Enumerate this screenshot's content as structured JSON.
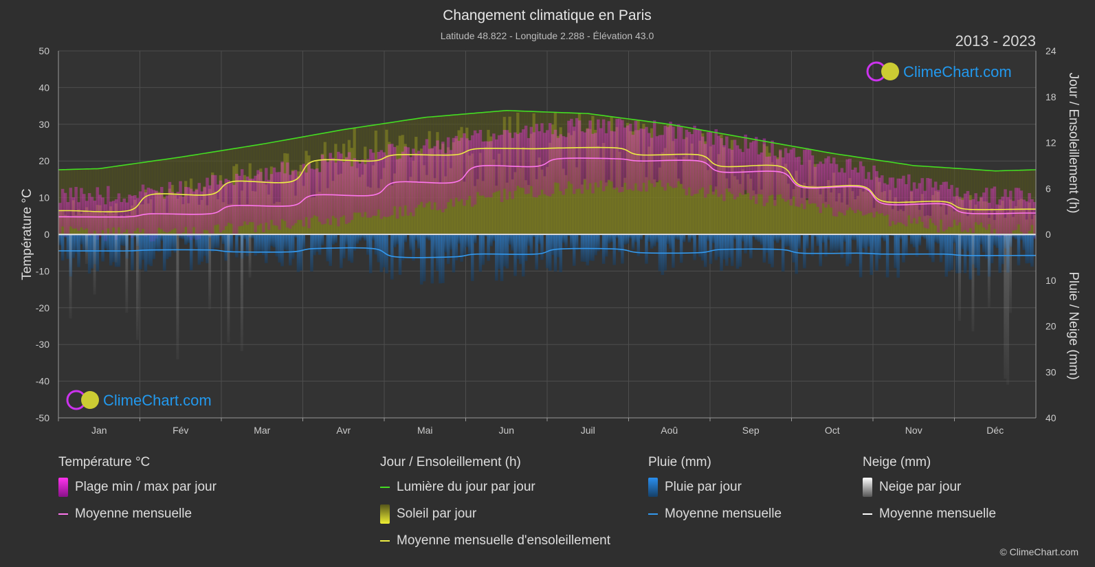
{
  "header": {
    "title": "Changement climatique en Paris",
    "subtitle": "Latitude 48.822 - Longitude 2.288 - Élévation 43.0",
    "years": "2013 - 2023"
  },
  "watermark": "ClimeChart.com",
  "copyright": "© ClimeChart.com",
  "colors": {
    "background": "#2f2f2f",
    "daylight": "#44dd22",
    "sunshine_avg": "#eeee44",
    "temp_avg": "#ff77ee",
    "rain_avg": "#3399ee",
    "snow_avg": "#ffffff",
    "temp_range": "#dd22cc",
    "sun_bar": "#9a9a1a",
    "rain_bar": "#1e5f9a",
    "brand": "#2299ee"
  },
  "chart_data": {
    "type": "line",
    "categories": [
      "Jan",
      "Fév",
      "Mar",
      "Avr",
      "Mai",
      "Jun",
      "Juil",
      "Aoû",
      "Sep",
      "Oct",
      "Nov",
      "Déc"
    ],
    "y_left": {
      "label": "Température °C",
      "min": -50,
      "max": 50,
      "ticks": [
        "50",
        "40",
        "30",
        "20",
        "10",
        "0",
        "-10",
        "-20",
        "-30",
        "-40",
        "-50"
      ]
    },
    "y_right_top": {
      "label": "Jour / Ensoleillement (h)",
      "min": 0,
      "max": 24,
      "ticks": [
        "24",
        "18",
        "12",
        "6",
        "0"
      ]
    },
    "y_right_bottom": {
      "label": "Pluie / Neige (mm)",
      "min": 0,
      "max": 40,
      "ticks": [
        "0",
        "10",
        "20",
        "30",
        "40"
      ]
    },
    "grid": true,
    "series": [
      {
        "name": "Lumière du jour par jour",
        "axis": "hours",
        "values": [
          8.6,
          10.1,
          11.8,
          13.7,
          15.3,
          16.2,
          15.8,
          14.4,
          12.5,
          10.6,
          9.0,
          8.3
        ]
      },
      {
        "name": "Moyenne mensuelle d'ensoleillement",
        "axis": "hours",
        "values": [
          3.1,
          5.2,
          6.9,
          9.6,
          10.4,
          11.2,
          11.3,
          10.4,
          8.9,
          6.3,
          4.3,
          3.3
        ]
      },
      {
        "name": "Moyenne mensuelle",
        "group": "Température °C",
        "axis": "temp",
        "values": [
          4.8,
          5.6,
          7.8,
          10.7,
          14.2,
          18.5,
          20.6,
          20.0,
          17.0,
          12.8,
          8.3,
          5.8
        ]
      },
      {
        "name": "Moyenne mensuelle",
        "group": "Pluie (mm)",
        "axis": "precip",
        "values": [
          3.6,
          3.4,
          3.8,
          3.1,
          4.9,
          4.3,
          3.2,
          4.0,
          3.3,
          4.1,
          4.3,
          4.6
        ]
      },
      {
        "name": "Moyenne mensuelle",
        "group": "Neige (mm)",
        "axis": "precip",
        "values": [
          0.1,
          0.1,
          0.0,
          0.0,
          0.0,
          0.0,
          0.0,
          0.0,
          0.0,
          0.0,
          0.0,
          0.1
        ]
      }
    ],
    "temp_range": {
      "min": [
        2,
        2,
        4,
        6,
        9,
        13,
        15,
        15,
        12,
        9,
        5,
        3
      ],
      "max": [
        8,
        10,
        14,
        18,
        21,
        25,
        27,
        26,
        22,
        17,
        11,
        8
      ]
    }
  },
  "legend": {
    "temperature": {
      "title": "Température °C",
      "items": [
        "Plage min / max par jour",
        "Moyenne mensuelle"
      ]
    },
    "sun": {
      "title": "Jour / Ensoleillement (h)",
      "items": [
        "Lumière du jour par jour",
        "Soleil par jour",
        "Moyenne mensuelle d'ensoleillement"
      ]
    },
    "rain": {
      "title": "Pluie (mm)",
      "items": [
        "Pluie par jour",
        "Moyenne mensuelle"
      ]
    },
    "snow": {
      "title": "Neige (mm)",
      "items": [
        "Neige par jour",
        "Moyenne mensuelle"
      ]
    }
  }
}
